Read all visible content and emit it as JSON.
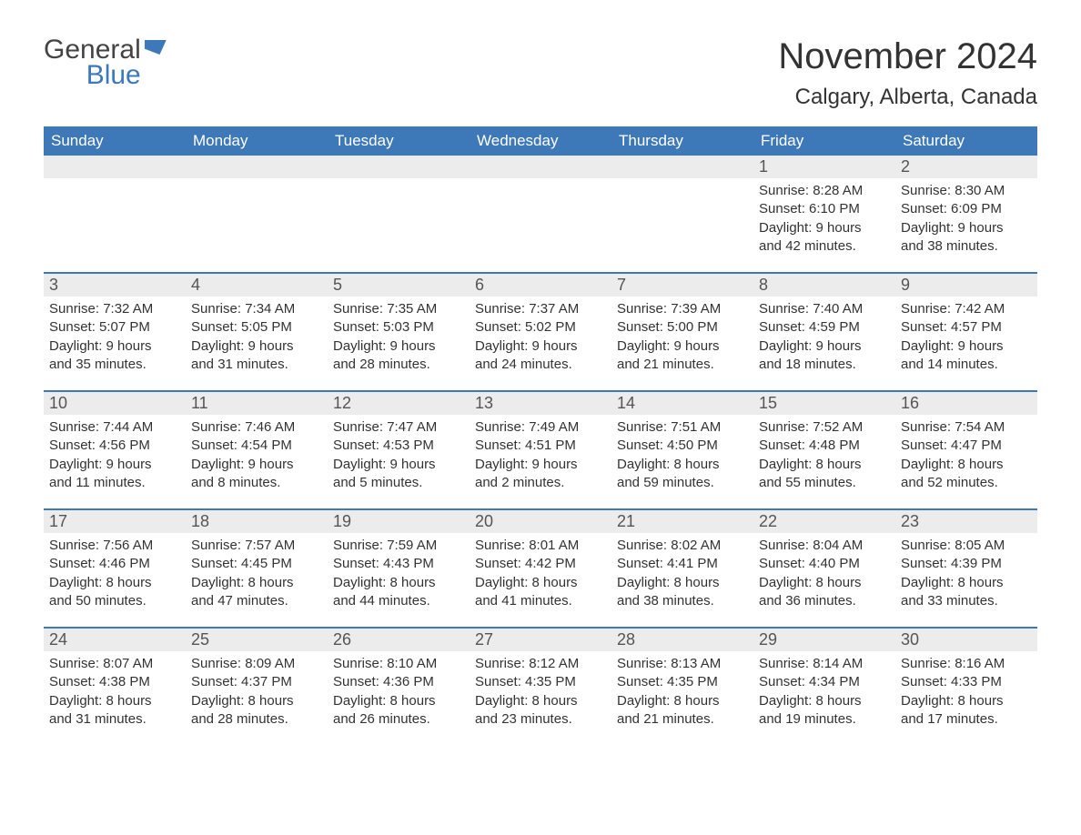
{
  "logo": {
    "text1": "General",
    "text2": "Blue",
    "color1": "#444444",
    "color2": "#3d79b8"
  },
  "title": "November 2024",
  "location": "Calgary, Alberta, Canada",
  "colors": {
    "header_bg": "#3d79b8",
    "header_text": "#ffffff",
    "daynum_bg": "#ececec",
    "daynum_text": "#555555",
    "body_text": "#333333",
    "rule": "#3d79b8",
    "page_bg": "#ffffff"
  },
  "day_headers": [
    "Sunday",
    "Monday",
    "Tuesday",
    "Wednesday",
    "Thursday",
    "Friday",
    "Saturday"
  ],
  "weeks": [
    [
      {
        "day": "",
        "empty": true
      },
      {
        "day": "",
        "empty": true
      },
      {
        "day": "",
        "empty": true
      },
      {
        "day": "",
        "empty": true
      },
      {
        "day": "",
        "empty": true
      },
      {
        "day": "1",
        "sunrise": "Sunrise: 8:28 AM",
        "sunset": "Sunset: 6:10 PM",
        "daylight1": "Daylight: 9 hours",
        "daylight2": "and 42 minutes."
      },
      {
        "day": "2",
        "sunrise": "Sunrise: 8:30 AM",
        "sunset": "Sunset: 6:09 PM",
        "daylight1": "Daylight: 9 hours",
        "daylight2": "and 38 minutes."
      }
    ],
    [
      {
        "day": "3",
        "sunrise": "Sunrise: 7:32 AM",
        "sunset": "Sunset: 5:07 PM",
        "daylight1": "Daylight: 9 hours",
        "daylight2": "and 35 minutes."
      },
      {
        "day": "4",
        "sunrise": "Sunrise: 7:34 AM",
        "sunset": "Sunset: 5:05 PM",
        "daylight1": "Daylight: 9 hours",
        "daylight2": "and 31 minutes."
      },
      {
        "day": "5",
        "sunrise": "Sunrise: 7:35 AM",
        "sunset": "Sunset: 5:03 PM",
        "daylight1": "Daylight: 9 hours",
        "daylight2": "and 28 minutes."
      },
      {
        "day": "6",
        "sunrise": "Sunrise: 7:37 AM",
        "sunset": "Sunset: 5:02 PM",
        "daylight1": "Daylight: 9 hours",
        "daylight2": "and 24 minutes."
      },
      {
        "day": "7",
        "sunrise": "Sunrise: 7:39 AM",
        "sunset": "Sunset: 5:00 PM",
        "daylight1": "Daylight: 9 hours",
        "daylight2": "and 21 minutes."
      },
      {
        "day": "8",
        "sunrise": "Sunrise: 7:40 AM",
        "sunset": "Sunset: 4:59 PM",
        "daylight1": "Daylight: 9 hours",
        "daylight2": "and 18 minutes."
      },
      {
        "day": "9",
        "sunrise": "Sunrise: 7:42 AM",
        "sunset": "Sunset: 4:57 PM",
        "daylight1": "Daylight: 9 hours",
        "daylight2": "and 14 minutes."
      }
    ],
    [
      {
        "day": "10",
        "sunrise": "Sunrise: 7:44 AM",
        "sunset": "Sunset: 4:56 PM",
        "daylight1": "Daylight: 9 hours",
        "daylight2": "and 11 minutes."
      },
      {
        "day": "11",
        "sunrise": "Sunrise: 7:46 AM",
        "sunset": "Sunset: 4:54 PM",
        "daylight1": "Daylight: 9 hours",
        "daylight2": "and 8 minutes."
      },
      {
        "day": "12",
        "sunrise": "Sunrise: 7:47 AM",
        "sunset": "Sunset: 4:53 PM",
        "daylight1": "Daylight: 9 hours",
        "daylight2": "and 5 minutes."
      },
      {
        "day": "13",
        "sunrise": "Sunrise: 7:49 AM",
        "sunset": "Sunset: 4:51 PM",
        "daylight1": "Daylight: 9 hours",
        "daylight2": "and 2 minutes."
      },
      {
        "day": "14",
        "sunrise": "Sunrise: 7:51 AM",
        "sunset": "Sunset: 4:50 PM",
        "daylight1": "Daylight: 8 hours",
        "daylight2": "and 59 minutes."
      },
      {
        "day": "15",
        "sunrise": "Sunrise: 7:52 AM",
        "sunset": "Sunset: 4:48 PM",
        "daylight1": "Daylight: 8 hours",
        "daylight2": "and 55 minutes."
      },
      {
        "day": "16",
        "sunrise": "Sunrise: 7:54 AM",
        "sunset": "Sunset: 4:47 PM",
        "daylight1": "Daylight: 8 hours",
        "daylight2": "and 52 minutes."
      }
    ],
    [
      {
        "day": "17",
        "sunrise": "Sunrise: 7:56 AM",
        "sunset": "Sunset: 4:46 PM",
        "daylight1": "Daylight: 8 hours",
        "daylight2": "and 50 minutes."
      },
      {
        "day": "18",
        "sunrise": "Sunrise: 7:57 AM",
        "sunset": "Sunset: 4:45 PM",
        "daylight1": "Daylight: 8 hours",
        "daylight2": "and 47 minutes."
      },
      {
        "day": "19",
        "sunrise": "Sunrise: 7:59 AM",
        "sunset": "Sunset: 4:43 PM",
        "daylight1": "Daylight: 8 hours",
        "daylight2": "and 44 minutes."
      },
      {
        "day": "20",
        "sunrise": "Sunrise: 8:01 AM",
        "sunset": "Sunset: 4:42 PM",
        "daylight1": "Daylight: 8 hours",
        "daylight2": "and 41 minutes."
      },
      {
        "day": "21",
        "sunrise": "Sunrise: 8:02 AM",
        "sunset": "Sunset: 4:41 PM",
        "daylight1": "Daylight: 8 hours",
        "daylight2": "and 38 minutes."
      },
      {
        "day": "22",
        "sunrise": "Sunrise: 8:04 AM",
        "sunset": "Sunset: 4:40 PM",
        "daylight1": "Daylight: 8 hours",
        "daylight2": "and 36 minutes."
      },
      {
        "day": "23",
        "sunrise": "Sunrise: 8:05 AM",
        "sunset": "Sunset: 4:39 PM",
        "daylight1": "Daylight: 8 hours",
        "daylight2": "and 33 minutes."
      }
    ],
    [
      {
        "day": "24",
        "sunrise": "Sunrise: 8:07 AM",
        "sunset": "Sunset: 4:38 PM",
        "daylight1": "Daylight: 8 hours",
        "daylight2": "and 31 minutes."
      },
      {
        "day": "25",
        "sunrise": "Sunrise: 8:09 AM",
        "sunset": "Sunset: 4:37 PM",
        "daylight1": "Daylight: 8 hours",
        "daylight2": "and 28 minutes."
      },
      {
        "day": "26",
        "sunrise": "Sunrise: 8:10 AM",
        "sunset": "Sunset: 4:36 PM",
        "daylight1": "Daylight: 8 hours",
        "daylight2": "and 26 minutes."
      },
      {
        "day": "27",
        "sunrise": "Sunrise: 8:12 AM",
        "sunset": "Sunset: 4:35 PM",
        "daylight1": "Daylight: 8 hours",
        "daylight2": "and 23 minutes."
      },
      {
        "day": "28",
        "sunrise": "Sunrise: 8:13 AM",
        "sunset": "Sunset: 4:35 PM",
        "daylight1": "Daylight: 8 hours",
        "daylight2": "and 21 minutes."
      },
      {
        "day": "29",
        "sunrise": "Sunrise: 8:14 AM",
        "sunset": "Sunset: 4:34 PM",
        "daylight1": "Daylight: 8 hours",
        "daylight2": "and 19 minutes."
      },
      {
        "day": "30",
        "sunrise": "Sunrise: 8:16 AM",
        "sunset": "Sunset: 4:33 PM",
        "daylight1": "Daylight: 8 hours",
        "daylight2": "and 17 minutes."
      }
    ]
  ]
}
